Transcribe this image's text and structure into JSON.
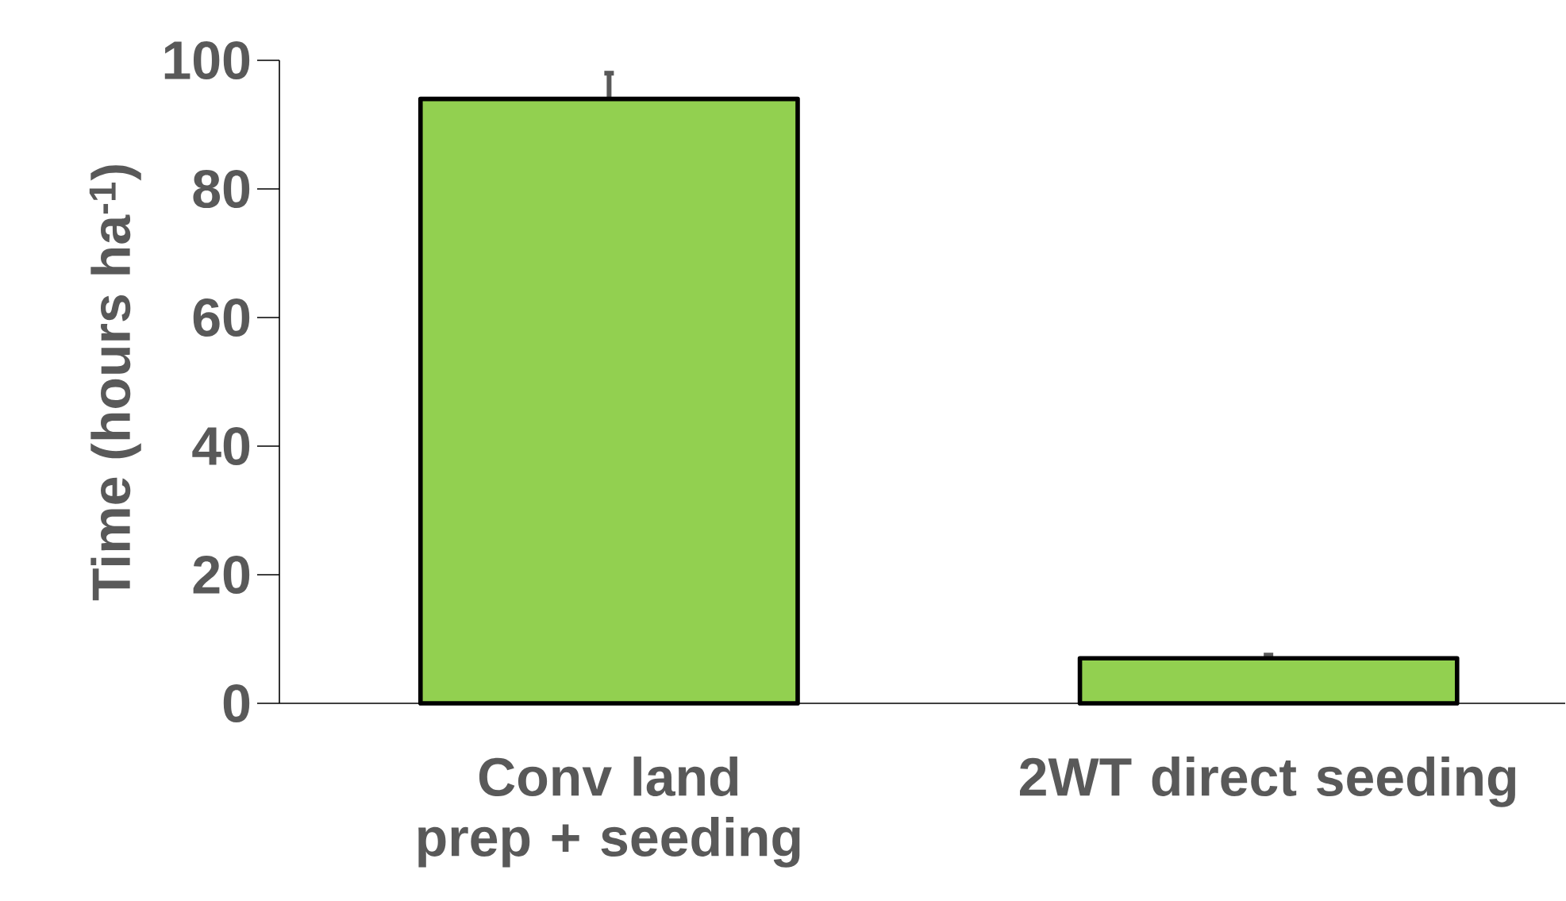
{
  "chart_data": {
    "type": "bar",
    "ylabel": "Time (hours ha$^{-1}$)",
    "categories": [
      "Conv land prep + seeding",
      "2WT direct seeding"
    ],
    "values": [
      94,
      7
    ],
    "errors": [
      4,
      0.5
    ],
    "color": "#92d050",
    "ylim": [
      0,
      100
    ],
    "yticks": [
      0,
      20,
      40,
      60,
      80,
      100
    ],
    "grid": false
  }
}
